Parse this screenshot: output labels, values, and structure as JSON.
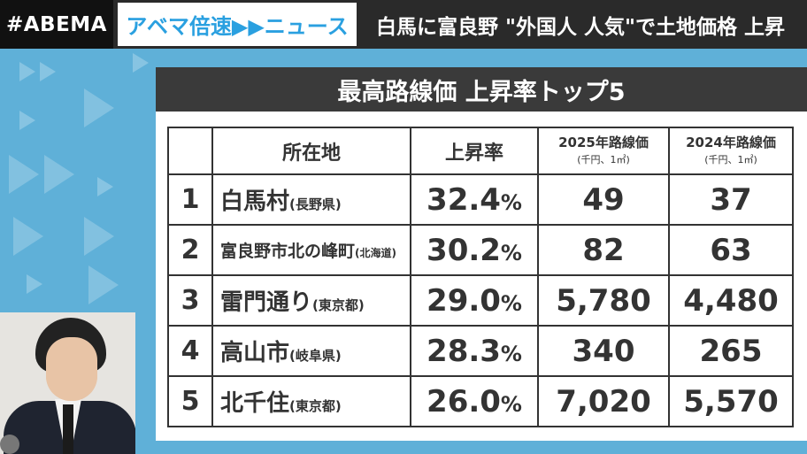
{
  "header": {
    "logo": "#ABEMA",
    "program": "アベマ倍速▶▶ニュース",
    "headline": "白馬に富良野 \"外国人 人気\"で土地価格 上昇"
  },
  "panel": {
    "title": "最高路線価 上昇率トップ5",
    "columns": {
      "location": "所在地",
      "rate": "上昇率",
      "price_2025": "2025年路線価",
      "price_2025_unit": "(千円、1㎡)",
      "price_2024": "2024年路線価",
      "price_2024_unit": "(千円、1㎡)"
    },
    "rows": [
      {
        "rank": "1",
        "place": "白馬村",
        "pref": "(長野県)",
        "rate": "32.4",
        "pct": "%",
        "p2025": "49",
        "p2024": "37"
      },
      {
        "rank": "2",
        "place": "富良野市北の峰町",
        "pref": "(北海道)",
        "rate": "30.2",
        "pct": "%",
        "p2025": "82",
        "p2024": "63"
      },
      {
        "rank": "3",
        "place": "雷門通り",
        "pref": "(東京都)",
        "rate": "29.0",
        "pct": "%",
        "p2025": "5,780",
        "p2024": "4,480"
      },
      {
        "rank": "4",
        "place": "高山市",
        "pref": "(岐阜県)",
        "rate": "28.3",
        "pct": "%",
        "p2025": "340",
        "p2024": "265"
      },
      {
        "rank": "5",
        "place": "北千住",
        "pref": "(東京都)",
        "rate": "26.0",
        "pct": "%",
        "p2025": "7,020",
        "p2024": "5,570"
      }
    ]
  }
}
